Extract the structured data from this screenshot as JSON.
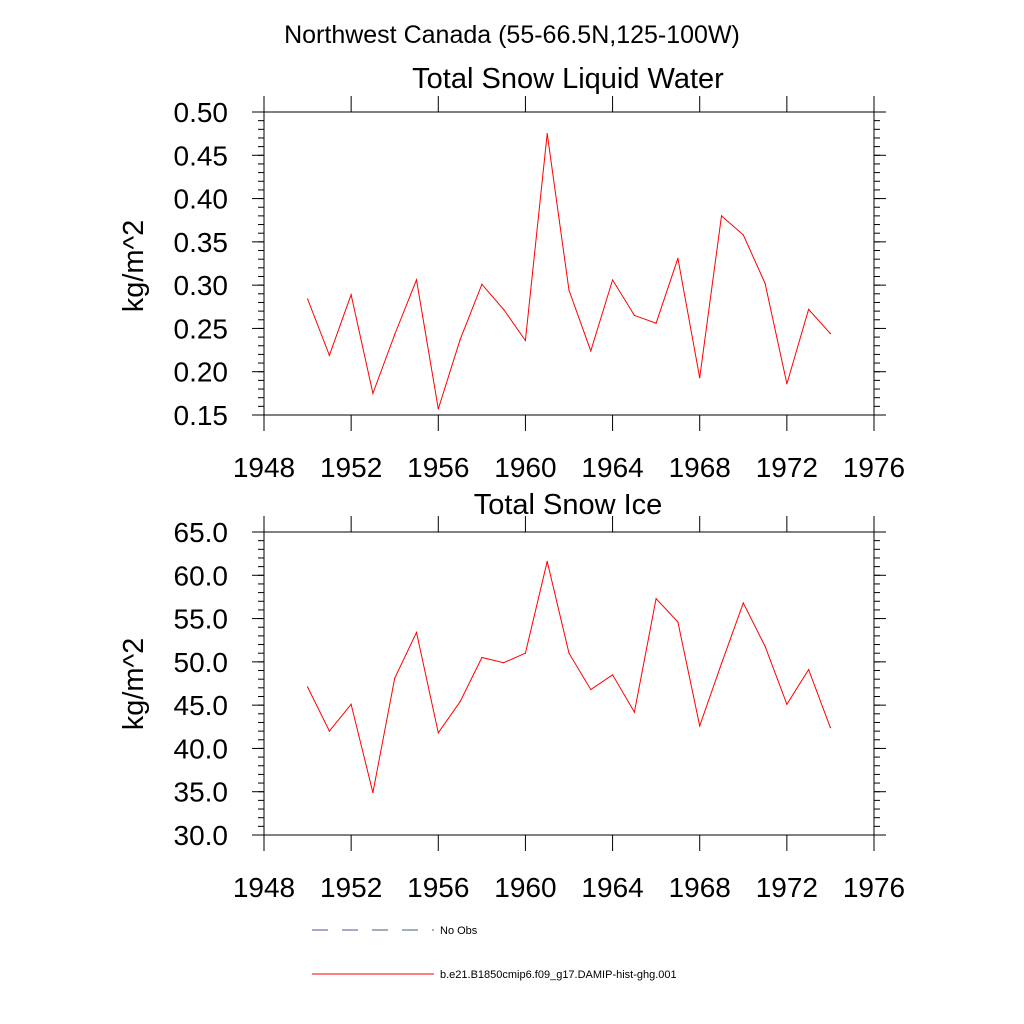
{
  "suptitle": "Northwest Canada (55-66.5N,125-100W)",
  "chart_data": [
    {
      "type": "line",
      "title": "Total Snow Liquid Water",
      "xlabel": "",
      "ylabel": "kg/m^2",
      "xlim": [
        1948,
        1976
      ],
      "ylim": [
        0.15,
        0.5
      ],
      "x_ticks": [
        "1948",
        "1952",
        "1956",
        "1960",
        "1964",
        "1968",
        "1972",
        "1976"
      ],
      "y_ticks": [
        "0.15",
        "0.20",
        "0.25",
        "0.30",
        "0.35",
        "0.40",
        "0.45",
        "0.50"
      ],
      "grid": false,
      "series": [
        {
          "name": "b.e21.B1850cmip6.f09_g17.DAMIP-hist-ghg.001",
          "color": "#ff0000",
          "x": [
            1950,
            1951,
            1952,
            1953,
            1954,
            1955,
            1956,
            1957,
            1958,
            1959,
            1960,
            1961,
            1962,
            1963,
            1964,
            1965,
            1966,
            1967,
            1968,
            1969,
            1970,
            1971,
            1972,
            1973,
            1974
          ],
          "y": [
            0.284,
            0.219,
            0.289,
            0.175,
            0.243,
            0.306,
            0.157,
            0.237,
            0.301,
            0.272,
            0.236,
            0.475,
            0.294,
            0.224,
            0.306,
            0.265,
            0.256,
            0.331,
            0.193,
            0.38,
            0.358,
            0.302,
            0.186,
            0.272,
            0.244
          ]
        }
      ]
    },
    {
      "type": "line",
      "title": "Total Snow Ice",
      "xlabel": "",
      "ylabel": "kg/m^2",
      "xlim": [
        1948,
        1976
      ],
      "ylim": [
        30,
        65
      ],
      "x_ticks": [
        "1948",
        "1952",
        "1956",
        "1960",
        "1964",
        "1968",
        "1972",
        "1976"
      ],
      "y_ticks": [
        "30.0",
        "35.0",
        "40.0",
        "45.0",
        "50.0",
        "55.0",
        "60.0",
        "65.0"
      ],
      "grid": false,
      "series": [
        {
          "name": "b.e21.B1850cmip6.f09_g17.DAMIP-hist-ghg.001",
          "color": "#ff0000",
          "x": [
            1950,
            1951,
            1952,
            1953,
            1954,
            1955,
            1956,
            1957,
            1958,
            1959,
            1960,
            1961,
            1962,
            1963,
            1964,
            1965,
            1966,
            1967,
            1968,
            1969,
            1970,
            1971,
            1972,
            1973,
            1974
          ],
          "y": [
            47.1,
            42.0,
            45.1,
            34.9,
            48.1,
            53.4,
            41.8,
            45.4,
            50.5,
            49.9,
            51.0,
            61.6,
            51.0,
            46.8,
            48.5,
            44.2,
            57.3,
            54.6,
            42.6,
            49.8,
            56.8,
            51.8,
            45.1,
            49.1,
            42.4
          ]
        }
      ]
    }
  ],
  "legend": {
    "placement": "bottom",
    "items": [
      {
        "label": "No Obs",
        "color": "#4a5a8a",
        "style": "dashed"
      },
      {
        "label": "b.e21.B1850cmip6.f09_g17.DAMIP-hist-ghg.001",
        "color": "#ff0000",
        "style": "solid"
      }
    ]
  }
}
